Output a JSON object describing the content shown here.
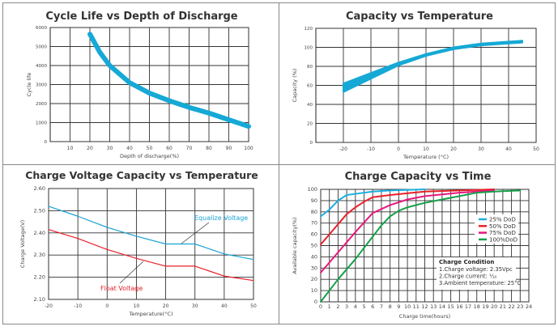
{
  "chart_data": [
    {
      "type": "line",
      "title": "Cycle Life vs Depth of Discharge",
      "xlabel": "Depth of discharge(%)",
      "ylabel": "Cycle life",
      "xlim": [
        0,
        100
      ],
      "ylim": [
        0,
        6000
      ],
      "xticks": [
        10,
        20,
        30,
        40,
        50,
        60,
        70,
        80,
        90,
        100
      ],
      "yticks": [
        0,
        1000,
        2000,
        3000,
        4000,
        5000,
        6000
      ],
      "grid": true,
      "series": [
        {
          "color": "#16a9d6",
          "x": [
            20,
            25,
            30,
            40,
            50,
            60,
            70,
            80,
            90,
            100
          ],
          "y": [
            5650,
            4700,
            4000,
            3100,
            2550,
            2150,
            1800,
            1500,
            1150,
            800
          ]
        }
      ]
    },
    {
      "type": "area",
      "title": "Capacity vs Temperature",
      "xlabel": "Temperature (°C)",
      "ylabel": "Capacity (%)",
      "xlim": [
        -30,
        50
      ],
      "ylim": [
        0,
        120
      ],
      "xticks": [
        -20,
        -10,
        0,
        10,
        20,
        30,
        40,
        50
      ],
      "yticks": [
        0,
        20,
        40,
        60,
        80,
        100,
        120
      ],
      "grid": true,
      "band": {
        "color": "#16a9d6",
        "x": [
          -20,
          -10,
          0,
          10,
          20,
          30,
          45
        ],
        "lower": [
          53,
          67,
          81,
          91,
          98,
          102,
          105
        ],
        "upper": [
          62,
          73,
          84,
          93,
          100,
          104,
          107
        ]
      }
    },
    {
      "type": "line",
      "title": "Charge Voltage  Capacity  vs  Temperature",
      "xlabel": "Temperature(°C)",
      "ylabel": "Charge Voltage(V)",
      "xlim": [
        -20,
        50
      ],
      "ylim": [
        2.1,
        2.6
      ],
      "xticks": [
        -20,
        -10,
        0,
        10,
        20,
        30,
        40,
        50
      ],
      "yticks": [
        "2.10",
        "2.20",
        "2.30",
        "2.40",
        "2.50",
        "2.60"
      ],
      "grid": true,
      "series": [
        {
          "name": "Equalize  Voltage",
          "color": "#1aa3d4",
          "x": [
            -20,
            -10,
            0,
            10,
            20,
            30,
            40,
            50
          ],
          "y": [
            2.52,
            2.475,
            2.425,
            2.385,
            2.35,
            2.35,
            2.305,
            2.28
          ]
        },
        {
          "name": "Float  Voltage",
          "color": "#e8202a",
          "x": [
            -20,
            -10,
            0,
            10,
            20,
            30,
            40,
            50
          ],
          "y": [
            2.415,
            2.375,
            2.325,
            2.285,
            2.25,
            2.25,
            2.205,
            2.185
          ]
        }
      ]
    },
    {
      "type": "line",
      "title": "Charge  Capacity  vs  Time",
      "xlabel": "Charge time(hours)",
      "ylabel": "Available capacity(%)",
      "xlim": [
        0,
        24
      ],
      "ylim": [
        0,
        100
      ],
      "xticks": [
        0,
        1,
        2,
        3,
        4,
        5,
        6,
        7,
        8,
        9,
        10,
        11,
        12,
        13,
        14,
        15,
        16,
        17,
        18,
        19,
        20,
        21,
        22,
        23,
        24
      ],
      "yticks": [
        0,
        10,
        20,
        30,
        40,
        50,
        60,
        70,
        80,
        90,
        100
      ],
      "grid": true,
      "legend": "right",
      "series": [
        {
          "name": "25%  DoD",
          "color": "#1aaee0",
          "x": [
            0,
            1,
            2,
            3,
            4,
            6,
            8,
            12
          ],
          "y": [
            76,
            82,
            90,
            95,
            96,
            98,
            99,
            100
          ]
        },
        {
          "name": "50%  DoD",
          "color": "#e8202a",
          "x": [
            0,
            1,
            2,
            3,
            4,
            5,
            6,
            8,
            12,
            20
          ],
          "y": [
            51,
            60,
            69,
            78,
            84,
            89,
            93,
            95,
            98,
            100
          ]
        },
        {
          "name": "75%  DoD",
          "color": "#e6187e",
          "x": [
            0,
            2,
            4,
            6,
            8,
            10,
            12,
            16,
            20
          ],
          "y": [
            26,
            44,
            62,
            79,
            86,
            91,
            94,
            97,
            99
          ]
        },
        {
          "name": "100%DoD",
          "color": "#14a04a",
          "x": [
            0,
            2,
            4,
            6,
            7,
            8,
            9,
            10,
            12,
            14,
            16,
            18,
            20,
            23
          ],
          "y": [
            0,
            20,
            38,
            58,
            68,
            76,
            81,
            84,
            88,
            91,
            94,
            97,
            98,
            99
          ]
        }
      ],
      "annotation": {
        "title": "Charge Condition",
        "lines": [
          "1.Charge voltage: 2.35Vpc",
          "2.Charge current: ⅒",
          "3.Ambient temperature: 25°C"
        ]
      }
    }
  ]
}
